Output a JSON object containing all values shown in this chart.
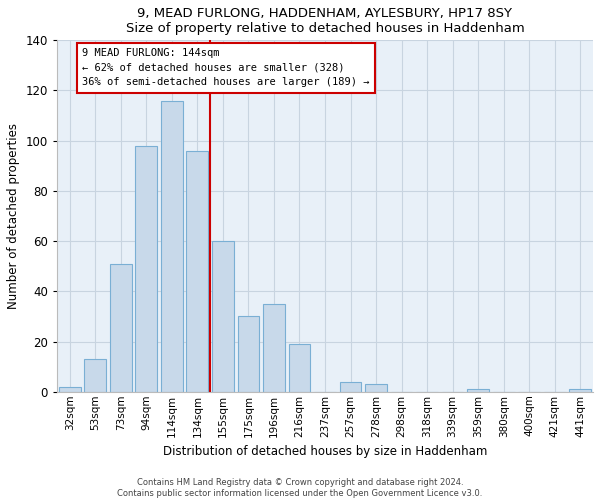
{
  "title": "9, MEAD FURLONG, HADDENHAM, AYLESBURY, HP17 8SY",
  "subtitle": "Size of property relative to detached houses in Haddenham",
  "xlabel": "Distribution of detached houses by size in Haddenham",
  "ylabel": "Number of detached properties",
  "bar_labels": [
    "32sqm",
    "53sqm",
    "73sqm",
    "94sqm",
    "114sqm",
    "134sqm",
    "155sqm",
    "175sqm",
    "196sqm",
    "216sqm",
    "237sqm",
    "257sqm",
    "278sqm",
    "298sqm",
    "318sqm",
    "339sqm",
    "359sqm",
    "380sqm",
    "400sqm",
    "421sqm",
    "441sqm"
  ],
  "bar_values": [
    2,
    13,
    51,
    98,
    116,
    96,
    60,
    30,
    35,
    19,
    0,
    4,
    3,
    0,
    0,
    0,
    1,
    0,
    0,
    0,
    1
  ],
  "bar_color": "#c8d9ea",
  "bar_edge_color": "#7aafd4",
  "vline_color": "#cc0000",
  "ylim": [
    0,
    140
  ],
  "yticks": [
    0,
    20,
    40,
    60,
    80,
    100,
    120,
    140
  ],
  "annotation_title": "9 MEAD FURLONG: 144sqm",
  "annotation_line1": "← 62% of detached houses are smaller (328)",
  "annotation_line2": "36% of semi-detached houses are larger (189) →",
  "annotation_box_color": "#ffffff",
  "annotation_box_edge": "#cc0000",
  "footer1": "Contains HM Land Registry data © Crown copyright and database right 2024.",
  "footer2": "Contains public sector information licensed under the Open Government Licence v3.0.",
  "background_color": "#ffffff",
  "ax_facecolor": "#e8f0f8",
  "grid_color": "#c8d4e0",
  "vline_index": 5.5
}
